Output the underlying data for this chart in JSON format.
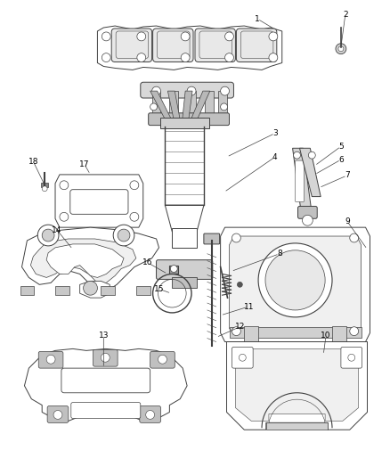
{
  "background_color": "#ffffff",
  "line_color": "#404040",
  "label_color": "#000000",
  "fig_width": 4.38,
  "fig_height": 5.33,
  "dpi": 100
}
